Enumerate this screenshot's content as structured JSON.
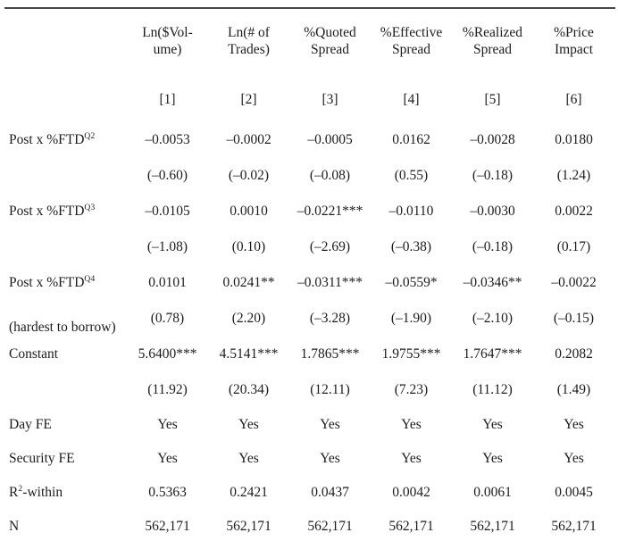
{
  "table": {
    "columns": [
      {
        "title_line1": "Ln($Vol-",
        "title_line2": "ume)",
        "index": "[1]"
      },
      {
        "title_line1": "Ln(# of",
        "title_line2": "Trades)",
        "index": "[2]"
      },
      {
        "title_line1": "%Quoted",
        "title_line2": "Spread",
        "index": "[3]"
      },
      {
        "title_line1": "%Effective",
        "title_line2": "Spread",
        "index": "[4]"
      },
      {
        "title_line1": "%Realized",
        "title_line2": "Spread",
        "index": "[5]"
      },
      {
        "title_line1": "%Price",
        "title_line2": "Impact",
        "index": "[6]"
      }
    ],
    "coef_rows": [
      {
        "label": "Post x %FTD",
        "label_sup": "Q2",
        "sublabel": "",
        "values": [
          "–0.0053",
          "–0.0002",
          "–0.0005",
          "0.0162",
          "–0.0028",
          "0.0180"
        ],
        "tstats": [
          "(–0.60)",
          "(–0.02)",
          "(–0.08)",
          "(0.55)",
          "(–0.18)",
          "(1.24)"
        ]
      },
      {
        "label": "Post x %FTD",
        "label_sup": "Q3",
        "sublabel": "",
        "values": [
          "–0.0105",
          "0.0010",
          "–0.0221***",
          "–0.0110",
          "–0.0030",
          "0.0022"
        ],
        "tstats": [
          "(–1.08)",
          "(0.10)",
          "(–2.69)",
          "(–0.38)",
          "(–0.18)",
          "(0.17)"
        ]
      },
      {
        "label": "Post x %FTD",
        "label_sup": "Q4",
        "sublabel": "(hardest to borrow)",
        "values": [
          "0.0101",
          "0.0241**",
          "–0.0311***",
          "–0.0559*",
          "–0.0346**",
          "–0.0022"
        ],
        "tstats": [
          "(0.78)",
          "(2.20)",
          "(–3.28)",
          "(–1.90)",
          "(–2.10)",
          "(–0.15)"
        ]
      },
      {
        "label": "Constant",
        "label_sup": "",
        "sublabel": "",
        "values": [
          "5.6400***",
          "4.5141***",
          "1.7865***",
          "1.9755***",
          "1.7647***",
          "0.2082"
        ],
        "tstats": [
          "(11.92)",
          "(20.34)",
          "(12.11)",
          "(7.23)",
          "(11.12)",
          "(1.49)"
        ]
      }
    ],
    "summary_rows": [
      {
        "label_pre": "Day FE",
        "label_sup": "",
        "label_post": "",
        "values": [
          "Yes",
          "Yes",
          "Yes",
          "Yes",
          "Yes",
          "Yes"
        ]
      },
      {
        "label_pre": "Security FE",
        "label_sup": "",
        "label_post": "",
        "values": [
          "Yes",
          "Yes",
          "Yes",
          "Yes",
          "Yes",
          "Yes"
        ]
      },
      {
        "label_pre": "R",
        "label_sup": "2",
        "label_post": "-within",
        "values": [
          "0.5363",
          "0.2421",
          "0.0437",
          "0.0042",
          "0.0061",
          "0.0045"
        ]
      },
      {
        "label_pre": "N",
        "label_sup": "",
        "label_post": "",
        "values": [
          "562,171",
          "562,171",
          "562,171",
          "562,171",
          "562,171",
          "562,171"
        ]
      }
    ]
  }
}
